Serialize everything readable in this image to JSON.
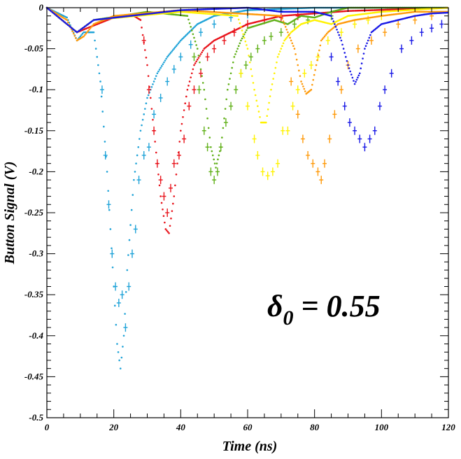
{
  "chart_data": {
    "type": "scatter",
    "xlabel": "Time (ns)",
    "ylabel": "Button Signal (V)",
    "xlim": [
      0,
      120
    ],
    "ylim": [
      -0.5,
      0
    ],
    "x_ticks": [
      0,
      20,
      40,
      60,
      80,
      100,
      120
    ],
    "y_ticks": [
      0,
      -0.05,
      -0.1,
      -0.15,
      -0.2,
      -0.25,
      -0.3,
      -0.35,
      -0.4,
      -0.45,
      -0.5
    ],
    "x_tick_labels": [
      "0",
      "20",
      "40",
      "60",
      "80",
      "100",
      "120"
    ],
    "y_tick_labels": [
      "0",
      "-0.05",
      "-0.1",
      "-0.15",
      "-0.2",
      "-0.25",
      "-0.3",
      "-0.35",
      "-0.4",
      "-0.45",
      "-0.5"
    ],
    "grid": false,
    "annotation": {
      "symbol": "δ",
      "subscript": "0",
      "text": " = 0.55"
    },
    "series": [
      {
        "color": "#1fa3d8",
        "simulation": [
          [
            0,
            0
          ],
          [
            6,
            -0.012
          ],
          [
            9,
            -0.04
          ],
          [
            11,
            -0.03
          ],
          [
            14,
            -0.03
          ],
          [
            16,
            -0.09
          ],
          [
            18,
            -0.2
          ],
          [
            20,
            -0.34
          ],
          [
            21,
            -0.41
          ],
          [
            22,
            -0.44
          ],
          [
            23,
            -0.4
          ],
          [
            24,
            -0.32
          ],
          [
            26,
            -0.21
          ],
          [
            28,
            -0.15
          ],
          [
            30,
            -0.11
          ],
          [
            33,
            -0.08
          ],
          [
            36,
            -0.06
          ],
          [
            40,
            -0.04
          ],
          [
            45,
            -0.02
          ],
          [
            50,
            -0.01
          ],
          [
            60,
            -0.003
          ],
          [
            80,
            0
          ],
          [
            120,
            0
          ]
        ],
        "measured": [
          [
            16.5,
            -0.1
          ],
          [
            17.5,
            -0.18
          ],
          [
            18.5,
            -0.24
          ],
          [
            19.5,
            -0.3
          ],
          [
            20.5,
            -0.34
          ],
          [
            21.5,
            -0.36
          ],
          [
            22.5,
            -0.35
          ],
          [
            23.5,
            -0.39
          ],
          [
            24.5,
            -0.34
          ],
          [
            25.5,
            -0.3
          ],
          [
            26.5,
            -0.27
          ],
          [
            27.5,
            -0.21
          ],
          [
            29,
            -0.18
          ],
          [
            30.5,
            -0.17
          ],
          [
            32,
            -0.13
          ],
          [
            34,
            -0.11
          ],
          [
            36,
            -0.09
          ],
          [
            38,
            -0.075
          ],
          [
            40,
            -0.06
          ],
          [
            43,
            -0.045
          ],
          [
            46,
            -0.03
          ],
          [
            50,
            -0.02
          ],
          [
            55,
            -0.012
          ],
          [
            60,
            -0.008
          ],
          [
            70,
            -0.004
          ]
        ]
      },
      {
        "color": "#e8131b",
        "simulation": [
          [
            0,
            0
          ],
          [
            9,
            -0.03
          ],
          [
            12,
            -0.025
          ],
          [
            20,
            -0.012
          ],
          [
            26,
            -0.01
          ],
          [
            28,
            -0.015
          ],
          [
            30,
            -0.07
          ],
          [
            32,
            -0.15
          ],
          [
            34,
            -0.23
          ],
          [
            35.5,
            -0.27
          ],
          [
            36.5,
            -0.275
          ],
          [
            38,
            -0.23
          ],
          [
            40,
            -0.15
          ],
          [
            42,
            -0.1
          ],
          [
            44,
            -0.07
          ],
          [
            47,
            -0.05
          ],
          [
            50,
            -0.04
          ],
          [
            55,
            -0.03
          ],
          [
            60,
            -0.02
          ],
          [
            70,
            -0.01
          ],
          [
            90,
            -0.004
          ],
          [
            120,
            0
          ]
        ],
        "measured": [
          [
            29,
            -0.04
          ],
          [
            30.5,
            -0.1
          ],
          [
            32,
            -0.15
          ],
          [
            33,
            -0.19
          ],
          [
            34,
            -0.21
          ],
          [
            35,
            -0.23
          ],
          [
            36,
            -0.25
          ],
          [
            37,
            -0.22
          ],
          [
            38,
            -0.19
          ],
          [
            39.5,
            -0.18
          ],
          [
            41,
            -0.16
          ],
          [
            42.5,
            -0.12
          ],
          [
            44,
            -0.1
          ],
          [
            46,
            -0.08
          ],
          [
            48,
            -0.06
          ],
          [
            50,
            -0.05
          ],
          [
            53,
            -0.04
          ],
          [
            56,
            -0.03
          ],
          [
            60,
            -0.02
          ],
          [
            65,
            -0.015
          ],
          [
            70,
            -0.012
          ],
          [
            75,
            -0.01
          ]
        ]
      },
      {
        "color": "#60b018",
        "simulation": [
          [
            0,
            0
          ],
          [
            9,
            -0.03
          ],
          [
            14,
            -0.015
          ],
          [
            30,
            -0.005
          ],
          [
            42,
            -0.01
          ],
          [
            45,
            -0.05
          ],
          [
            47,
            -0.1
          ],
          [
            49,
            -0.17
          ],
          [
            50.5,
            -0.195
          ],
          [
            52,
            -0.17
          ],
          [
            54,
            -0.1
          ],
          [
            56,
            -0.06
          ],
          [
            58,
            -0.04
          ],
          [
            60,
            -0.025
          ],
          [
            64,
            -0.02
          ],
          [
            68,
            -0.015
          ],
          [
            72,
            -0.02
          ],
          [
            76,
            -0.01
          ],
          [
            80,
            -0.012
          ],
          [
            85,
            -0.005
          ],
          [
            90,
            0
          ],
          [
            120,
            0
          ]
        ],
        "measured": [
          [
            44,
            -0.06
          ],
          [
            45.5,
            -0.1
          ],
          [
            47,
            -0.15
          ],
          [
            48,
            -0.17
          ],
          [
            49,
            -0.2
          ],
          [
            50,
            -0.21
          ],
          [
            51,
            -0.2
          ],
          [
            52,
            -0.17
          ],
          [
            53.5,
            -0.14
          ],
          [
            55,
            -0.12
          ],
          [
            56.5,
            -0.1
          ],
          [
            58,
            -0.08
          ],
          [
            59.5,
            -0.07
          ],
          [
            61,
            -0.06
          ],
          [
            63,
            -0.05
          ],
          [
            65,
            -0.04
          ],
          [
            67,
            -0.035
          ],
          [
            70,
            -0.03
          ],
          [
            74,
            -0.02
          ],
          [
            78,
            -0.015
          ],
          [
            85,
            -0.01
          ]
        ]
      },
      {
        "color": "#fff200",
        "simulation": [
          [
            0,
            0
          ],
          [
            9,
            -0.03
          ],
          [
            14,
            -0.015
          ],
          [
            40,
            -0.005
          ],
          [
            57,
            -0.01
          ],
          [
            60,
            -0.05
          ],
          [
            62,
            -0.1
          ],
          [
            64,
            -0.14
          ],
          [
            65.5,
            -0.14
          ],
          [
            67,
            -0.1
          ],
          [
            69,
            -0.06
          ],
          [
            71,
            -0.04
          ],
          [
            73,
            -0.03
          ],
          [
            76,
            -0.02
          ],
          [
            80,
            -0.015
          ],
          [
            85,
            -0.02
          ],
          [
            90,
            -0.01
          ],
          [
            100,
            -0.005
          ],
          [
            120,
            0
          ]
        ],
        "measured": [
          [
            58,
            -0.08
          ],
          [
            60,
            -0.12
          ],
          [
            62,
            -0.16
          ],
          [
            63,
            -0.18
          ],
          [
            64.5,
            -0.2
          ],
          [
            66,
            -0.205
          ],
          [
            67.5,
            -0.2
          ],
          [
            69,
            -0.19
          ],
          [
            70.5,
            -0.15
          ],
          [
            72,
            -0.15
          ],
          [
            73.5,
            -0.12
          ],
          [
            75,
            -0.1
          ],
          [
            77,
            -0.08
          ],
          [
            79,
            -0.07
          ],
          [
            81,
            -0.06
          ],
          [
            84,
            -0.04
          ],
          [
            88,
            -0.03
          ],
          [
            92,
            -0.02
          ],
          [
            96,
            -0.015
          ],
          [
            100,
            -0.01
          ]
        ]
      },
      {
        "color": "#ff9a0a",
        "simulation": [
          [
            0,
            0
          ],
          [
            6,
            -0.015
          ],
          [
            9,
            -0.04
          ],
          [
            11,
            -0.035
          ],
          [
            14,
            -0.02
          ],
          [
            20,
            -0.01
          ],
          [
            40,
            -0.003
          ],
          [
            70,
            -0.01
          ],
          [
            74,
            -0.05
          ],
          [
            76,
            -0.09
          ],
          [
            77.5,
            -0.105
          ],
          [
            79,
            -0.1
          ],
          [
            80.5,
            -0.07
          ],
          [
            82,
            -0.04
          ],
          [
            84,
            -0.03
          ],
          [
            87,
            -0.02
          ],
          [
            92,
            -0.015
          ],
          [
            100,
            -0.01
          ],
          [
            110,
            -0.005
          ],
          [
            120,
            -0.005
          ]
        ],
        "measured": [
          [
            73,
            -0.09
          ],
          [
            75,
            -0.13
          ],
          [
            76.5,
            -0.16
          ],
          [
            78,
            -0.18
          ],
          [
            79.5,
            -0.19
          ],
          [
            81,
            -0.2
          ],
          [
            82,
            -0.21
          ],
          [
            83,
            -0.19
          ],
          [
            84.5,
            -0.16
          ],
          [
            86,
            -0.13
          ],
          [
            88,
            -0.1
          ],
          [
            90,
            -0.07
          ],
          [
            93,
            -0.05
          ],
          [
            97,
            -0.04
          ],
          [
            101,
            -0.03
          ],
          [
            105,
            -0.02
          ],
          [
            110,
            -0.015
          ],
          [
            115,
            -0.01
          ]
        ]
      },
      {
        "color": "#1818e6",
        "simulation": [
          [
            0,
            0
          ],
          [
            9,
            -0.03
          ],
          [
            14,
            -0.015
          ],
          [
            40,
            -0.003
          ],
          [
            60,
            0.0
          ],
          [
            70,
            -0.005
          ],
          [
            80,
            -0.005
          ],
          [
            85,
            -0.01
          ],
          [
            88,
            -0.04
          ],
          [
            90,
            -0.07
          ],
          [
            92,
            -0.093
          ],
          [
            93.5,
            -0.08
          ],
          [
            95,
            -0.05
          ],
          [
            97,
            -0.03
          ],
          [
            100,
            -0.02
          ],
          [
            105,
            -0.015
          ],
          [
            110,
            -0.01
          ],
          [
            115,
            -0.007
          ],
          [
            120,
            -0.006
          ]
        ],
        "measured": [
          [
            85,
            -0.06
          ],
          [
            87,
            -0.09
          ],
          [
            89,
            -0.12
          ],
          [
            90.5,
            -0.14
          ],
          [
            92,
            -0.15
          ],
          [
            93.5,
            -0.16
          ],
          [
            95,
            -0.17
          ],
          [
            96.5,
            -0.16
          ],
          [
            98,
            -0.15
          ],
          [
            99.5,
            -0.12
          ],
          [
            101,
            -0.1
          ],
          [
            103,
            -0.08
          ],
          [
            106,
            -0.05
          ],
          [
            109,
            -0.04
          ],
          [
            112,
            -0.03
          ],
          [
            115,
            -0.025
          ],
          [
            118,
            -0.02
          ]
        ]
      }
    ]
  }
}
